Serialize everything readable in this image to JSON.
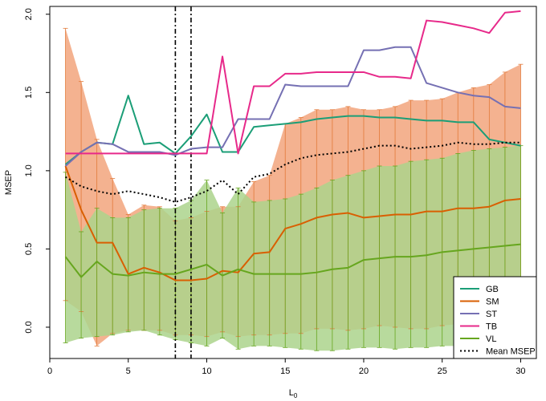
{
  "chart_data": {
    "type": "line",
    "xlabel": "L",
    "xlabel_subscript": "0",
    "ylabel": "MSEP",
    "xlim": [
      0,
      31
    ],
    "ylim": [
      -0.2,
      2.05
    ],
    "x_ticks": [
      0,
      5,
      10,
      15,
      20,
      25,
      30
    ],
    "y_ticks": [
      0.0,
      0.5,
      1.0,
      1.5,
      2.0
    ],
    "y_tick_labels": [
      "0.0",
      "0.5",
      "1.0",
      "1.5",
      "2.0"
    ],
    "vlines": [
      8,
      9
    ],
    "legend_position": "bottom-right",
    "x": [
      1,
      2,
      3,
      4,
      5,
      6,
      7,
      8,
      9,
      10,
      11,
      12,
      13,
      14,
      15,
      16,
      17,
      18,
      19,
      20,
      21,
      22,
      23,
      24,
      25,
      26,
      27,
      28,
      29,
      30
    ],
    "series": [
      {
        "name": "GB",
        "color": "#1b9e77",
        "values": [
          1.04,
          1.12,
          1.18,
          1.17,
          1.48,
          1.17,
          1.18,
          1.11,
          1.22,
          1.36,
          1.12,
          1.12,
          1.28,
          1.29,
          1.3,
          1.31,
          1.33,
          1.34,
          1.35,
          1.35,
          1.34,
          1.34,
          1.33,
          1.32,
          1.32,
          1.31,
          1.31,
          1.2,
          1.18,
          1.16
        ]
      },
      {
        "name": "SM",
        "color": "#d95f02",
        "values": [
          1.03,
          0.75,
          0.54,
          0.54,
          0.34,
          0.38,
          0.35,
          0.3,
          0.3,
          0.31,
          0.36,
          0.35,
          0.47,
          0.48,
          0.63,
          0.66,
          0.7,
          0.72,
          0.73,
          0.7,
          0.71,
          0.72,
          0.72,
          0.74,
          0.74,
          0.76,
          0.76,
          0.77,
          0.81,
          0.82
        ]
      },
      {
        "name": "ST",
        "color": "#7570b3",
        "values": [
          1.03,
          1.12,
          1.18,
          1.17,
          1.12,
          1.12,
          1.12,
          1.1,
          1.14,
          1.15,
          1.15,
          1.33,
          1.33,
          1.33,
          1.55,
          1.54,
          1.54,
          1.54,
          1.54,
          1.77,
          1.77,
          1.79,
          1.79,
          1.56,
          1.53,
          1.5,
          1.48,
          1.47,
          1.41,
          1.4
        ]
      },
      {
        "name": "TB",
        "color": "#e7298a",
        "values": [
          1.11,
          1.11,
          1.11,
          1.11,
          1.11,
          1.11,
          1.11,
          1.11,
          1.11,
          1.11,
          1.73,
          1.11,
          1.54,
          1.54,
          1.62,
          1.62,
          1.63,
          1.63,
          1.63,
          1.63,
          1.6,
          1.6,
          1.59,
          1.96,
          1.95,
          1.93,
          1.91,
          1.88,
          2.01,
          2.02
        ]
      },
      {
        "name": "VL",
        "color": "#66a61e",
        "values": [
          0.45,
          0.32,
          0.42,
          0.34,
          0.33,
          0.35,
          0.34,
          0.34,
          0.37,
          0.4,
          0.33,
          0.37,
          0.34,
          0.34,
          0.34,
          0.34,
          0.35,
          0.37,
          0.38,
          0.43,
          0.44,
          0.45,
          0.45,
          0.46,
          0.48,
          0.49,
          0.5,
          0.51,
          0.52,
          0.53
        ]
      },
      {
        "name": "Mean MSEP",
        "color": "#000000",
        "dashed": true,
        "values": [
          0.96,
          0.9,
          0.87,
          0.85,
          0.87,
          0.85,
          0.83,
          0.8,
          0.83,
          0.87,
          0.94,
          0.85,
          0.96,
          0.98,
          1.04,
          1.08,
          1.1,
          1.11,
          1.12,
          1.14,
          1.16,
          1.16,
          1.14,
          1.15,
          1.16,
          1.18,
          1.17,
          1.17,
          1.18,
          1.18
        ]
      }
    ],
    "bands": [
      {
        "series": "SM",
        "fill": "#f2a57c",
        "stroke": "#e27a3a",
        "lower": [
          0.17,
          0.1,
          -0.12,
          -0.04,
          -0.02,
          -0.02,
          -0.02,
          -0.05,
          -0.05,
          -0.06,
          -0.03,
          -0.06,
          -0.05,
          -0.05,
          -0.04,
          -0.04,
          -0.01,
          -0.01,
          -0.02,
          -0.01,
          0.01,
          0.0,
          -0.01,
          -0.01,
          0.01,
          0.02,
          0.03,
          0.04,
          0.05,
          0.06
        ],
        "upper": [
          1.91,
          1.57,
          1.2,
          0.95,
          0.72,
          0.78,
          0.77,
          0.68,
          0.7,
          0.74,
          0.77,
          0.77,
          0.93,
          0.97,
          1.3,
          1.34,
          1.39,
          1.39,
          1.41,
          1.39,
          1.39,
          1.41,
          1.45,
          1.45,
          1.46,
          1.5,
          1.53,
          1.55,
          1.63,
          1.68
        ]
      },
      {
        "series": "VL",
        "fill": "#abd38c",
        "stroke": "#66a61e",
        "lower": [
          -0.1,
          -0.07,
          -0.06,
          -0.05,
          -0.03,
          -0.02,
          -0.05,
          -0.08,
          -0.1,
          -0.12,
          -0.07,
          -0.14,
          -0.12,
          -0.12,
          -0.13,
          -0.14,
          -0.15,
          -0.15,
          -0.14,
          -0.13,
          -0.13,
          -0.14,
          -0.13,
          -0.13,
          -0.12,
          -0.12,
          -0.11,
          -0.11,
          -0.11,
          -0.1
        ],
        "upper": [
          0.99,
          0.61,
          0.76,
          0.7,
          0.7,
          0.75,
          0.76,
          0.76,
          0.81,
          0.94,
          0.73,
          0.89,
          0.8,
          0.81,
          0.82,
          0.85,
          0.89,
          0.94,
          0.97,
          1.0,
          1.03,
          1.03,
          1.06,
          1.07,
          1.08,
          1.11,
          1.13,
          1.14,
          1.15,
          1.16
        ]
      }
    ]
  }
}
